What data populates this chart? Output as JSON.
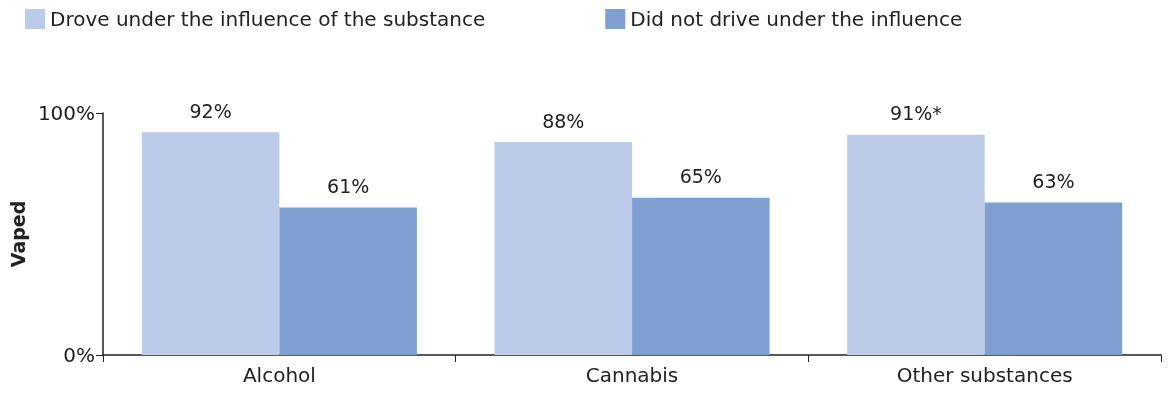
{
  "chart_data": {
    "type": "bar",
    "ylabel": "Vaped",
    "categories": [
      "Alcohol",
      "Cannabis",
      "Other substances"
    ],
    "series": [
      {
        "name": "Drove under the influence of the substance",
        "color": "#bccbe8",
        "values": [
          92,
          88,
          91
        ],
        "value_labels": [
          "92%",
          "88%",
          "91%*"
        ]
      },
      {
        "name": "Did not drive under the influence",
        "color": "#7f9ed2",
        "values": [
          61,
          65,
          63
        ],
        "value_labels": [
          "61%",
          "65%",
          "63%"
        ]
      }
    ],
    "ylim": [
      0,
      100
    ],
    "yticks": [
      {
        "value": 0,
        "label": "0%"
      },
      {
        "value": 100,
        "label": "100%"
      }
    ],
    "grid": false,
    "legend": "top left"
  }
}
